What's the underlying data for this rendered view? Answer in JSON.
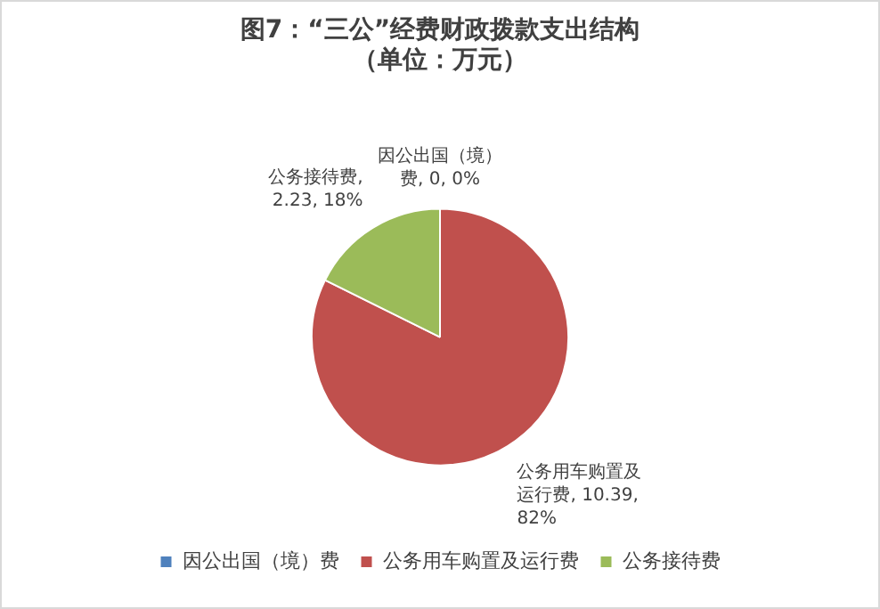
{
  "chart_data": {
    "type": "pie",
    "title": "图7：“三公”经费财政拨款支出结构",
    "subtitle": "（单位：万元）",
    "categories": [
      "因公出国（境）费",
      "公务用车购置及运行费",
      "公务接待费"
    ],
    "values": [
      0,
      10.39,
      2.23
    ],
    "colors": [
      "#4f81bd",
      "#c0504d",
      "#9bbb59"
    ],
    "value_labels": [
      "因公出国（境）费, 0, 0%",
      "公务用车购置及运行费, 10.39, 82%",
      "公务接待费, 2.23, 18%"
    ],
    "legend": "bottom"
  }
}
